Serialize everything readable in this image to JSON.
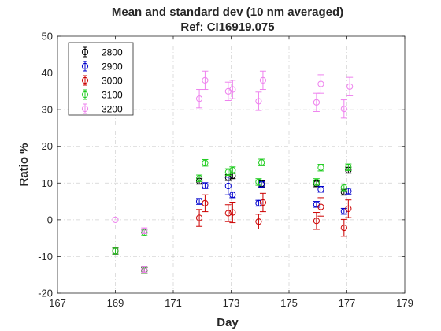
{
  "chart_data": {
    "type": "scatter",
    "title": "Mean and standard dev (10 nm averaged)",
    "subtitle": "Ref: CI16919.075",
    "xlabel": "Day",
    "ylabel": "Ratio %",
    "xlim": [
      167,
      179
    ],
    "ylim": [
      -20,
      50
    ],
    "xticks": [
      "167",
      "169",
      "171",
      "173",
      "175",
      "177",
      "179"
    ],
    "yticks": [
      "-20",
      "-10",
      "0",
      "10",
      "20",
      "30",
      "40",
      "50"
    ],
    "grid": true,
    "legend_position": "top-left",
    "series": [
      {
        "name": "2800",
        "color": "#000000",
        "x": [
          169,
          170,
          171.9,
          172.9,
          173.05,
          174.05,
          175.95,
          176.9,
          177.05
        ],
        "y": [
          -8.5,
          -13.8,
          10.5,
          11.5,
          12.0,
          9.8,
          9.8,
          7.5,
          13.5
        ],
        "err": [
          0.8,
          0.8,
          0.8,
          0.8,
          0.8,
          0.8,
          0.8,
          0.8,
          0.8
        ]
      },
      {
        "name": "2900",
        "color": "#0000cc",
        "x": [
          169,
          170,
          171.9,
          172.1,
          172.9,
          173.05,
          173.95,
          174.05,
          175.95,
          176.1,
          176.9,
          177.05
        ],
        "y": [
          -8.5,
          -13.8,
          5.0,
          9.3,
          9.2,
          6.8,
          4.5,
          9.6,
          4.2,
          8.3,
          2.3,
          7.8
        ],
        "err": [
          0.8,
          0.8,
          0.8,
          0.8,
          2.4,
          0.8,
          0.8,
          0.8,
          0.8,
          0.8,
          0.8,
          0.8
        ]
      },
      {
        "name": "3000",
        "color": "#cc0000",
        "x": [
          169,
          170,
          171.9,
          172.1,
          172.9,
          173.05,
          173.95,
          174.1,
          175.95,
          176.1,
          176.9,
          177.05
        ],
        "y": [
          -8.5,
          -13.8,
          0.5,
          4.5,
          1.8,
          2.0,
          -0.5,
          4.7,
          -0.3,
          3.5,
          -2.2,
          3.0
        ],
        "err": [
          0.8,
          0.8,
          2.3,
          2.3,
          2.3,
          2.8,
          2.0,
          2.5,
          2.3,
          2.5,
          2.3,
          2.4
        ]
      },
      {
        "name": "3100",
        "color": "#22cc22",
        "x": [
          169,
          170,
          171.9,
          172.1,
          172.9,
          173.05,
          173.95,
          174.05,
          175.95,
          176.1,
          176.9,
          177.05
        ],
        "y": [
          -8.5,
          -13.8,
          11.3,
          15.5,
          13.0,
          13.5,
          10.3,
          15.6,
          10.3,
          14.2,
          8.8,
          14.3
        ],
        "err": [
          0.8,
          0.8,
          0.9,
          0.9,
          0.9,
          0.9,
          0.9,
          0.9,
          0.9,
          0.9,
          0.9,
          0.9
        ]
      },
      {
        "name": "3200",
        "color": "#ee82ee",
        "x": [
          169,
          170,
          171.9,
          172.1,
          172.9,
          173.05,
          173.95,
          174.1,
          175.95,
          176.1,
          176.9,
          177.1
        ],
        "y": [
          0.0,
          -13.5,
          33.0,
          38.0,
          35.0,
          35.5,
          32.3,
          38.0,
          32.0,
          37.0,
          30.2,
          36.3
        ],
        "err": [
          0.0,
          0.8,
          2.5,
          2.5,
          2.5,
          2.5,
          2.5,
          2.5,
          2.5,
          2.5,
          2.5,
          2.5
        ]
      }
    ],
    "extra_points": [
      {
        "series": "3100",
        "x": 170,
        "y": -3.5,
        "err": 0.8
      },
      {
        "series": "3200",
        "x": 170,
        "y": -3.0,
        "err": 0.8
      }
    ]
  }
}
